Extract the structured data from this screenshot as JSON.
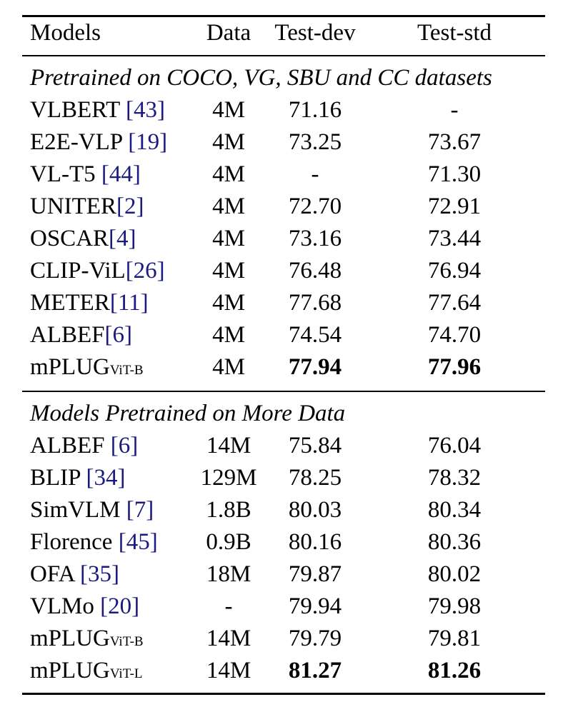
{
  "colors": {
    "citation": "#1a1a80",
    "text": "#000000"
  },
  "table": {
    "headers": [
      "Models",
      "Data",
      "Test-dev",
      "Test-std"
    ],
    "sections": [
      {
        "title": "Pretrained on COCO, VG, SBU and CC datasets",
        "rows": [
          {
            "model": "VLBERT ",
            "cite": "[43]",
            "data": "4M",
            "dev": "71.16",
            "std": "-"
          },
          {
            "model": "E2E-VLP ",
            "cite": "[19]",
            "data": "4M",
            "dev": "73.25",
            "std": "73.67"
          },
          {
            "model": "VL-T5 ",
            "cite": "[44]",
            "data": "4M",
            "dev": "-",
            "std": "71.30"
          },
          {
            "model": "UNITER",
            "cite": "[2]",
            "data": "4M",
            "dev": "72.70",
            "std": "72.91"
          },
          {
            "model": "OSCAR",
            "cite": "[4]",
            "data": "4M",
            "dev": "73.16",
            "std": "73.44"
          },
          {
            "model": "CLIP-ViL",
            "cite": "[26]",
            "data": "4M",
            "dev": "76.48",
            "std": "76.94"
          },
          {
            "model": "METER",
            "cite": "[11]",
            "data": "4M",
            "dev": "77.68",
            "std": "77.64"
          },
          {
            "model": "ALBEF",
            "cite": "[6]",
            "data": "4M",
            "dev": "74.54",
            "std": "74.70"
          },
          {
            "model": "mPLUG",
            "sub": "ViT-B",
            "data": "4M",
            "dev": "77.94",
            "std": "77.96",
            "bold": true
          }
        ]
      },
      {
        "title": "Models Pretrained on More Data",
        "rows": [
          {
            "model": "ALBEF ",
            "cite": "[6]",
            "data": "14M",
            "dev": "75.84",
            "std": "76.04"
          },
          {
            "model": "BLIP ",
            "cite": "[34]",
            "data": "129M",
            "dev": "78.25",
            "std": "78.32"
          },
          {
            "model": "SimVLM ",
            "cite": "[7]",
            "data": "1.8B",
            "dev": "80.03",
            "std": "80.34"
          },
          {
            "model": "Florence ",
            "cite": "[45]",
            "data": "0.9B",
            "dev": "80.16",
            "std": "80.36"
          },
          {
            "model": "OFA ",
            "cite": "[35]",
            "data": "18M",
            "dev": "79.87",
            "std": "80.02"
          },
          {
            "model": "VLMo ",
            "cite": "[20]",
            "data": "-",
            "dev": "79.94",
            "std": "79.98"
          },
          {
            "model": "mPLUG",
            "sub": "ViT-B",
            "data": "14M",
            "dev": "79.79",
            "std": "79.81"
          },
          {
            "model": "mPLUG",
            "sub": "ViT-L",
            "data": "14M",
            "dev": "81.27",
            "std": "81.26",
            "bold": true
          }
        ]
      }
    ]
  }
}
